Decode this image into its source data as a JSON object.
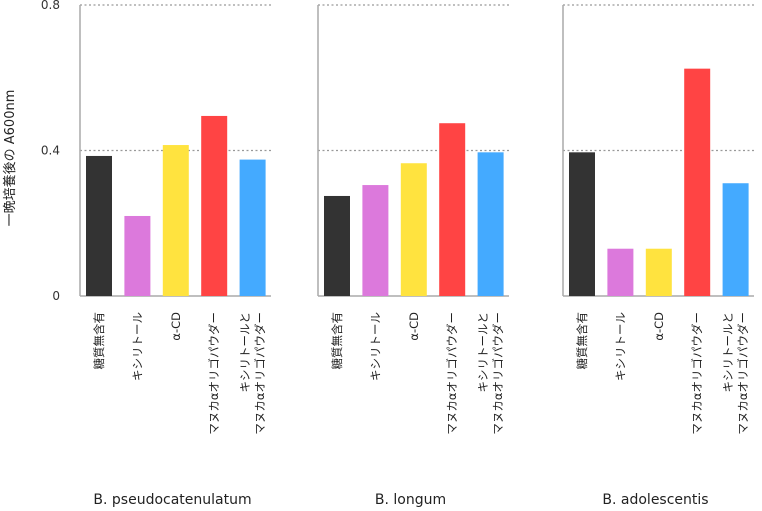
{
  "chart_data": {
    "type": "bar",
    "ylabel": "一晩培養後の A600nm",
    "ylim": [
      0,
      0.8
    ],
    "yticks": [
      0,
      0.4,
      0.8
    ],
    "ytick_labels": [
      "0",
      "0.4",
      "0.8"
    ],
    "dotted_reference_lines": [
      0.4,
      0.8
    ],
    "categories": [
      "糖質無含有",
      "キシリトール",
      "α-CD",
      "マヌカαオリゴパウダー",
      "キシリトールと\nマヌカαオリゴパウダー"
    ],
    "colors": [
      "#333333",
      "#dc79dc",
      "#ffe33f",
      "#ff4444",
      "#44aaff"
    ],
    "panels": [
      {
        "title": "B. pseudocatenulatum",
        "values": [
          0.385,
          0.22,
          0.415,
          0.495,
          0.375
        ]
      },
      {
        "title": "B. longum",
        "values": [
          0.275,
          0.305,
          0.365,
          0.475,
          0.395
        ]
      },
      {
        "title": "B. adolescentis",
        "values": [
          0.395,
          0.13,
          0.13,
          0.625,
          0.31
        ]
      }
    ]
  }
}
